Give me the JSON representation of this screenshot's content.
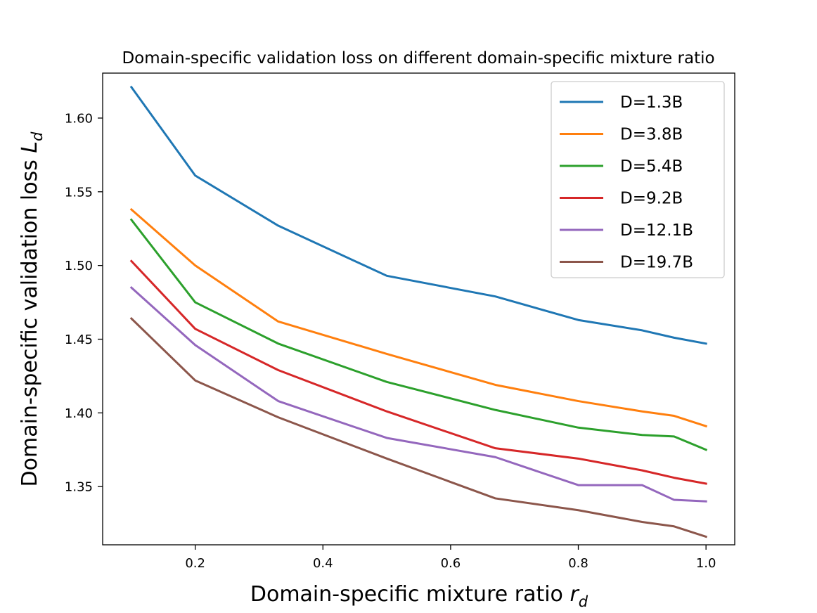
{
  "chart_data": {
    "type": "line",
    "title": "Domain-specific validation loss on different domain-specific mixture ratio",
    "xlabel": {
      "text": "Domain-specific mixture ratio ",
      "symbol": "r",
      "subscript": "d"
    },
    "ylabel": {
      "text": "Domain-specific validation loss ",
      "symbol": "L",
      "subscript": "d"
    },
    "xlim": [
      0.055,
      1.045
    ],
    "ylim": [
      1.3105,
      1.6305
    ],
    "xticks": [
      0.2,
      0.4,
      0.6,
      0.8,
      1.0
    ],
    "xtick_labels": [
      "0.2",
      "0.4",
      "0.6",
      "0.8",
      "1.0"
    ],
    "yticks": [
      1.35,
      1.4,
      1.45,
      1.5,
      1.55,
      1.6
    ],
    "ytick_labels": [
      "1.35",
      "1.40",
      "1.45",
      "1.50",
      "1.55",
      "1.60"
    ],
    "grid": false,
    "legend": "top-right",
    "x": [
      0.1,
      0.2,
      0.33,
      0.5,
      0.67,
      0.8,
      0.9,
      0.95,
      1.0
    ],
    "series": [
      {
        "name": "D=1.3B",
        "color": "#1f77b4",
        "values": [
          1.621,
          1.561,
          1.527,
          1.493,
          1.479,
          1.463,
          1.456,
          1.451,
          1.447
        ]
      },
      {
        "name": "D=3.8B",
        "color": "#ff7f0e",
        "values": [
          1.538,
          1.5,
          1.462,
          1.44,
          1.419,
          1.408,
          1.401,
          1.398,
          1.391
        ]
      },
      {
        "name": "D=5.4B",
        "color": "#2ca02c",
        "values": [
          1.531,
          1.475,
          1.447,
          1.421,
          1.402,
          1.39,
          1.385,
          1.384,
          1.375
        ]
      },
      {
        "name": "D=9.2B",
        "color": "#d62728",
        "values": [
          1.503,
          1.457,
          1.429,
          1.401,
          1.376,
          1.369,
          1.361,
          1.356,
          1.352
        ]
      },
      {
        "name": "D=12.1B",
        "color": "#9467bd",
        "values": [
          1.485,
          1.446,
          1.408,
          1.383,
          1.37,
          1.351,
          1.351,
          1.341,
          1.34
        ]
      },
      {
        "name": "D=19.7B",
        "color": "#8c564b",
        "values": [
          1.464,
          1.422,
          1.397,
          1.369,
          1.342,
          1.334,
          1.326,
          1.323,
          1.316
        ]
      }
    ]
  }
}
